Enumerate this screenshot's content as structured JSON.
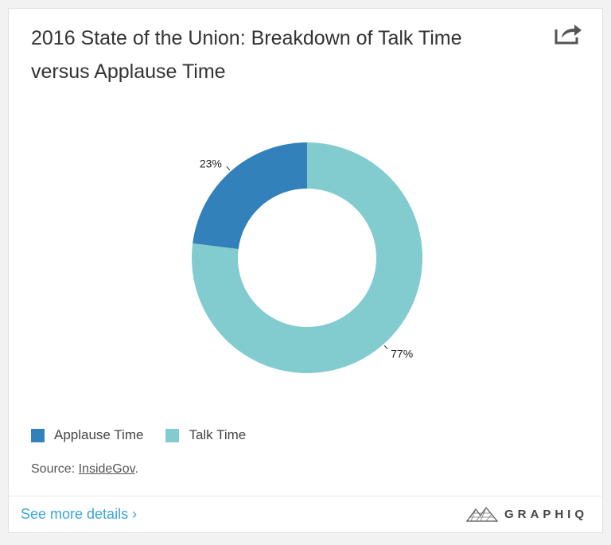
{
  "title": "2016 State of the Union: Breakdown of Talk Time versus Applause Time",
  "share_icon": "share-icon",
  "chart_data": {
    "type": "pie",
    "donut": true,
    "categories": [
      "Applause Time",
      "Talk Time"
    ],
    "values": [
      23,
      77
    ],
    "labels": [
      "23%",
      "77%"
    ],
    "colors": [
      "#3381bb",
      "#82ccd0"
    ],
    "legend_position": "bottom-left"
  },
  "legend": [
    {
      "label": "Applause Time",
      "color": "#3381bb"
    },
    {
      "label": "Talk Time",
      "color": "#82ccd0"
    }
  ],
  "source": {
    "prefix": "Source: ",
    "link": "InsideGov",
    "suffix": "."
  },
  "footer": {
    "details_label": "See more details ›",
    "brand": "GRAPHIQ"
  },
  "colors": {
    "accent": "#3aa6d8"
  }
}
